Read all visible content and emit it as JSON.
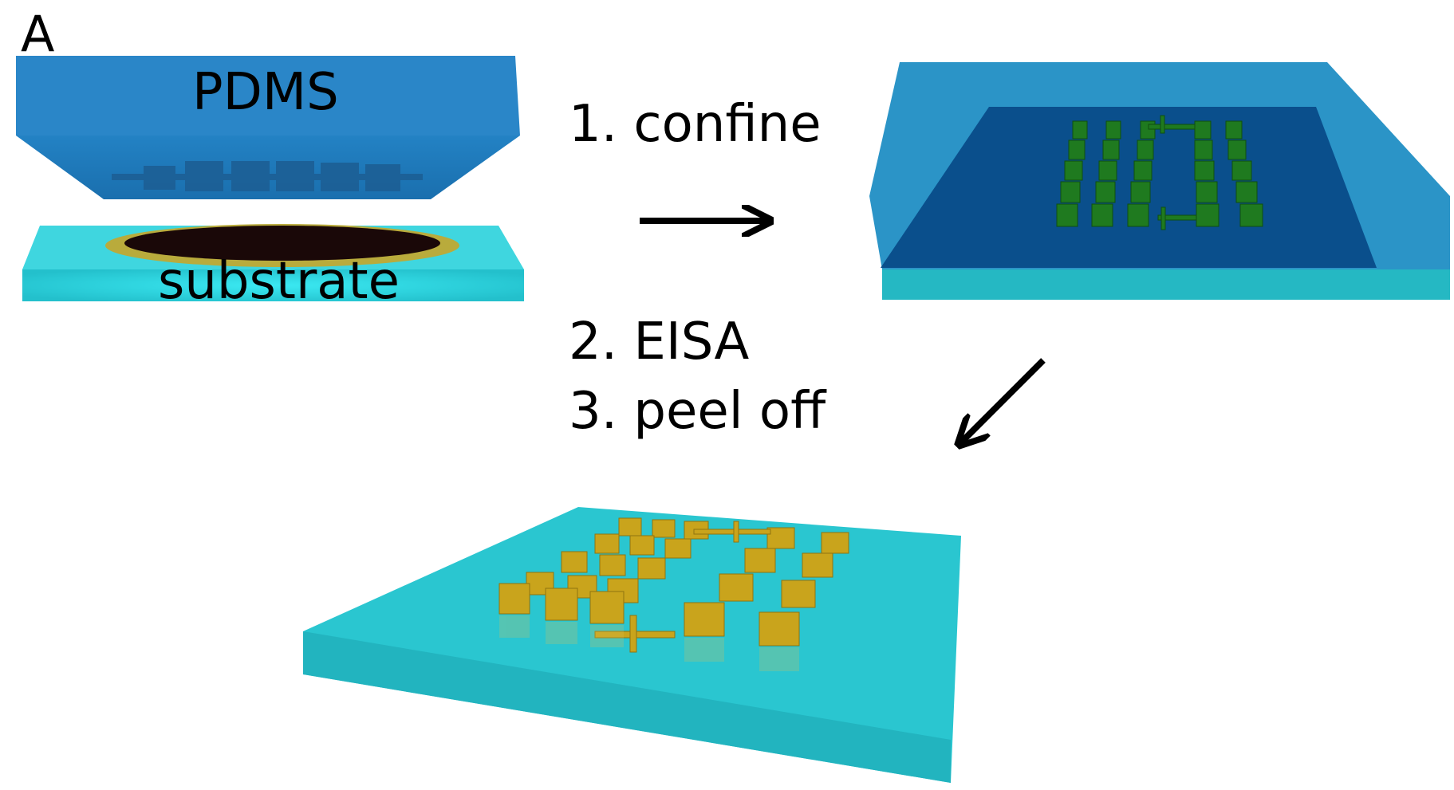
{
  "panel_label": "A",
  "labels": {
    "pdms": "PDMS",
    "substrate": "substrate"
  },
  "steps": {
    "step1": "1. confine",
    "step2": "2. EISA",
    "step3": "3. peel off"
  },
  "colors": {
    "pdms": "#1f7bbf",
    "substrate": "#2ac6d0",
    "confined_layer": "#0a4f8c",
    "green_pillars": "#1f7a1f",
    "gold_pillars": "#c9a41c",
    "ring": "#b7a83a",
    "droplet": "#1a0808",
    "arrow": "#000000"
  }
}
